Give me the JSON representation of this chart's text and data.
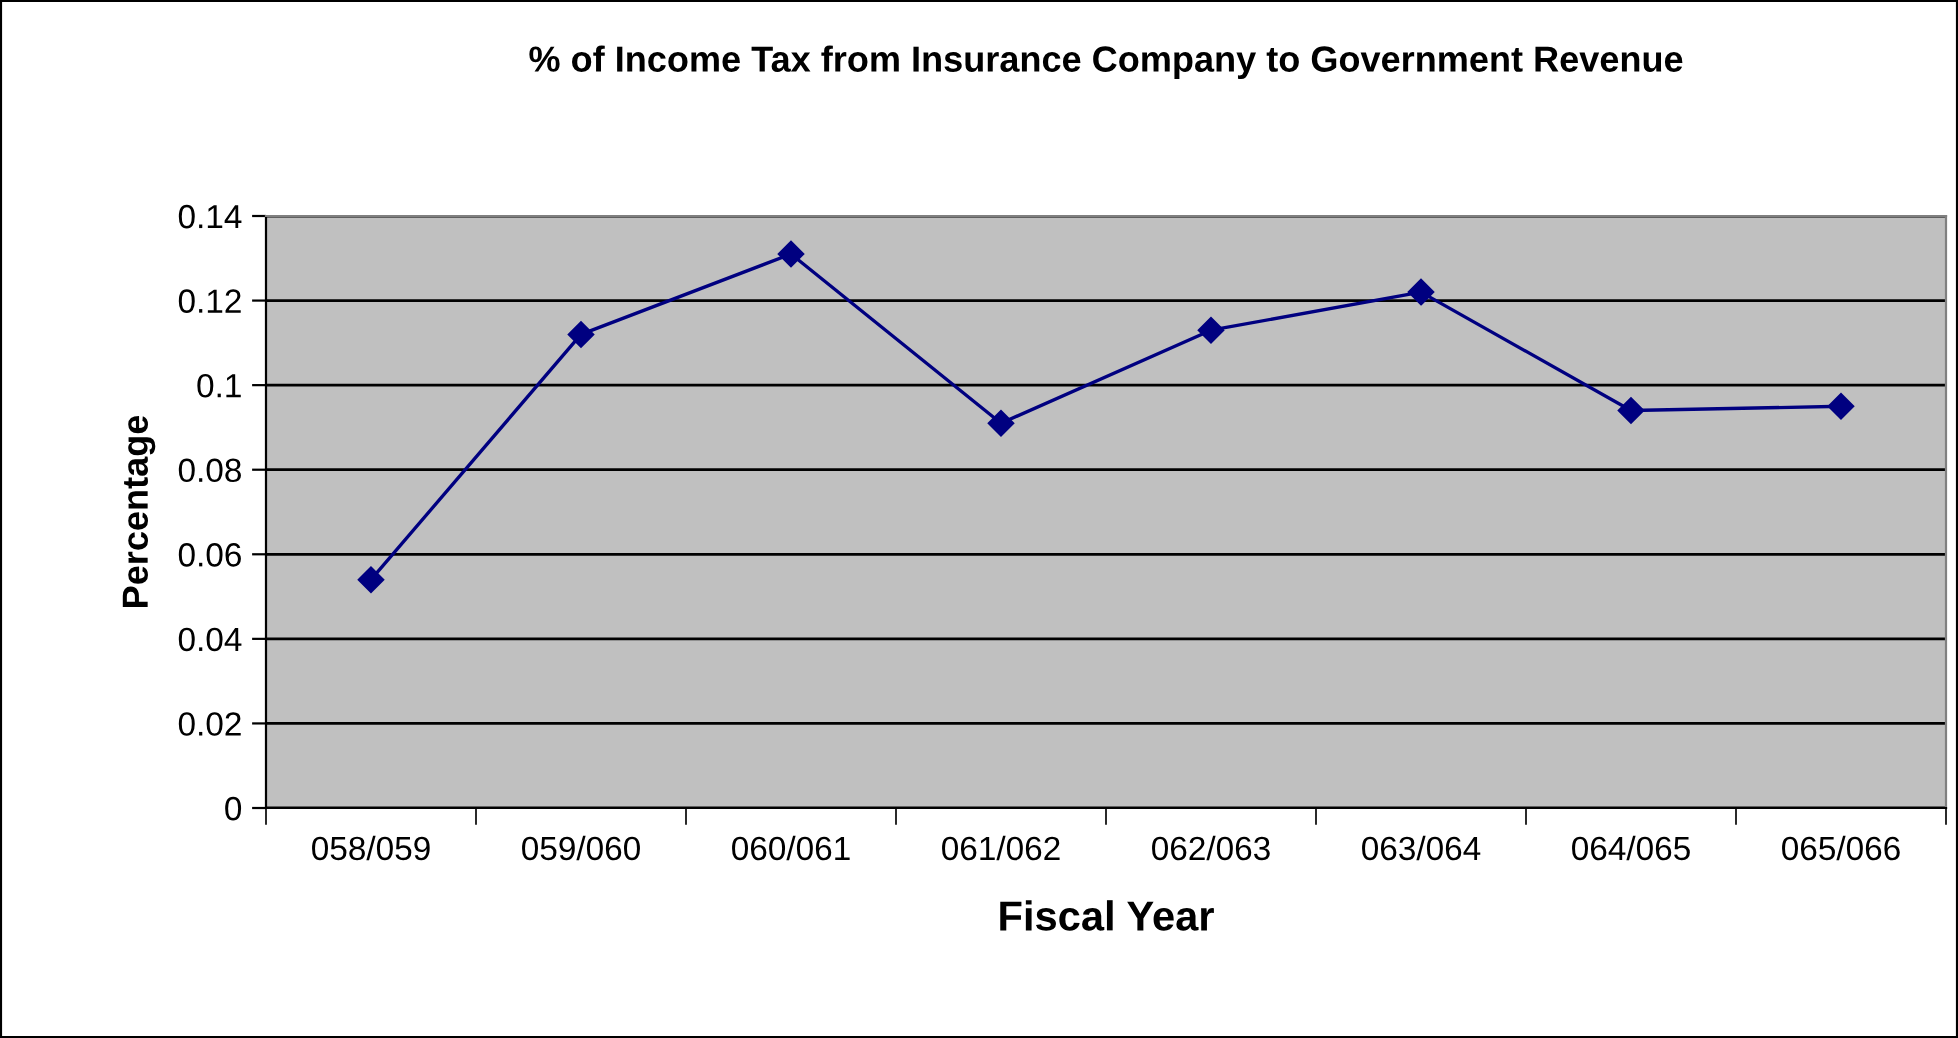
{
  "chart_data": {
    "type": "line",
    "title": "% of Income Tax from Insurance Company to Government Revenue",
    "xlabel": "Fiscal Year",
    "ylabel": "Percentage",
    "categories": [
      "058/059",
      "059/060",
      "060/061",
      "061/062",
      "062/063",
      "063/064",
      "064/065",
      "065/066"
    ],
    "series": [
      {
        "color": "#000080",
        "values": [
          0.054,
          0.112,
          0.131,
          0.091,
          0.113,
          0.122,
          0.094,
          0.095
        ]
      }
    ],
    "ylim": [
      0,
      0.14
    ],
    "yticks": [
      0,
      0.02,
      0.04,
      0.06,
      0.08,
      0.1,
      0.12,
      0.14
    ],
    "grid": "y",
    "marker": "diamond",
    "line_style": "solid",
    "legend": false
  }
}
